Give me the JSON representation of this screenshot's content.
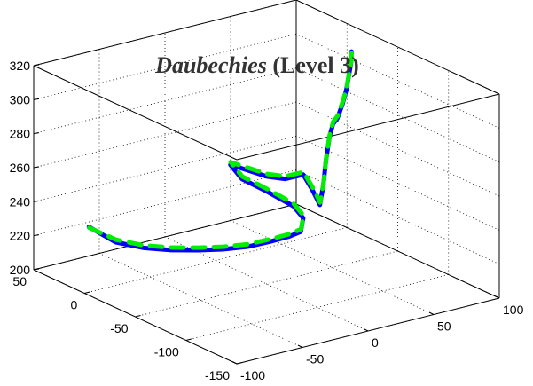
{
  "chart_data": {
    "type": "line",
    "title": {
      "italic_part": "Daubechies",
      "regular_part": " (Level 3)"
    },
    "xlabel": "",
    "ylabel": "",
    "zlabel": "",
    "xlim": [
      -100,
      100
    ],
    "ylim": [
      -150,
      50
    ],
    "zlim": [
      200,
      320
    ],
    "x_ticks": [
      "-100",
      "-50",
      "0",
      "50",
      "100"
    ],
    "y_ticks": [
      "-150",
      "-100",
      "-50",
      "0",
      "50"
    ],
    "z_ticks": [
      "200",
      "220",
      "240",
      "260",
      "280",
      "300",
      "320"
    ],
    "grid": true,
    "series": [
      {
        "color": "#0000ff",
        "points": [
          [
            -85,
            15,
            232
          ],
          [
            -70,
            8,
            222
          ],
          [
            -55,
            0,
            218
          ],
          [
            -40,
            -8,
            216
          ],
          [
            -25,
            -15,
            215
          ],
          [
            -10,
            -20,
            214
          ],
          [
            5,
            -25,
            214
          ],
          [
            20,
            -28,
            215
          ],
          [
            32,
            -30,
            216
          ],
          [
            40,
            -32,
            218
          ],
          [
            45,
            -28,
            224
          ],
          [
            42,
            -22,
            230
          ],
          [
            30,
            -10,
            238
          ],
          [
            20,
            0,
            244
          ],
          [
            15,
            5,
            252
          ],
          [
            25,
            0,
            248
          ],
          [
            35,
            -5,
            244
          ],
          [
            45,
            -10,
            242
          ],
          [
            55,
            -15,
            244
          ],
          [
            58,
            -20,
            236
          ],
          [
            60,
            -25,
            228
          ],
          [
            65,
            -22,
            238
          ],
          [
            70,
            -18,
            250
          ],
          [
            75,
            -15,
            262
          ],
          [
            80,
            -12,
            268
          ],
          [
            85,
            -10,
            270
          ],
          [
            92,
            -6,
            276
          ],
          [
            98,
            -2,
            282
          ],
          [
            103,
            0,
            296
          ],
          [
            105,
            2,
            302
          ]
        ]
      },
      {
        "color": "#00ee00",
        "points": [
          [
            -84,
            16,
            231
          ],
          [
            -69,
            9,
            223
          ],
          [
            -54,
            1,
            219
          ],
          [
            -39,
            -7,
            217
          ],
          [
            -24,
            -14,
            216
          ],
          [
            -9,
            -19,
            215
          ],
          [
            6,
            -24,
            215
          ],
          [
            21,
            -27,
            216
          ],
          [
            33,
            -29,
            217
          ],
          [
            41,
            -31,
            219
          ],
          [
            46,
            -27,
            225
          ],
          [
            43,
            -21,
            231
          ],
          [
            31,
            -9,
            239
          ],
          [
            21,
            1,
            245
          ],
          [
            16,
            6,
            253
          ],
          [
            26,
            1,
            249
          ],
          [
            36,
            -4,
            245
          ],
          [
            46,
            -9,
            243
          ],
          [
            56,
            -14,
            245
          ],
          [
            59,
            -19,
            237
          ],
          [
            61,
            -24,
            229
          ],
          [
            66,
            -21,
            239
          ],
          [
            71,
            -17,
            251
          ],
          [
            76,
            -14,
            263
          ],
          [
            81,
            -11,
            269
          ],
          [
            86,
            -9,
            271
          ],
          [
            93,
            -5,
            277
          ],
          [
            99,
            -1,
            283
          ],
          [
            104,
            1,
            297
          ],
          [
            106,
            3,
            303
          ]
        ]
      }
    ]
  }
}
